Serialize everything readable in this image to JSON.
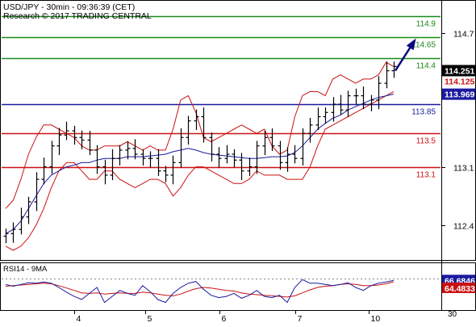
{
  "header": {
    "line1": "USD/JPY - 30min - 09:36:39 (CET)",
    "line2": "Research © 2017 TRADING CENTRAL"
  },
  "rsi_panel": {
    "label": "RSI14 - 9MA",
    "scale_label": "30",
    "rsi_value": "66.6846",
    "ma_value": "64.4833"
  },
  "colors": {
    "level_up": "#1a8a1a",
    "level_pivot": "#1a1aa0",
    "level_down": "#cc1111",
    "candles": "#000000",
    "bollinger": "#cc1111",
    "moving_average": "#1a1aa0",
    "target_arrow": "#0a0a80",
    "price_tag_current": "#000000",
    "price_tag_pivot": "#1a1aa0",
    "price_tag_red": "#cc1111",
    "rsi_tag": "#1a1aa0",
    "rsi_ma_tag": "#cc1111"
  },
  "chart_data": {
    "type": "line",
    "title": "USD/JPY - 30min",
    "xlabel": "",
    "ylabel": "",
    "ylim": [
      112.2,
      114.95
    ],
    "x_ticks": [
      "4",
      "5",
      "6",
      "7",
      "10"
    ],
    "y_ticks": [
      {
        "value": 114.7,
        "label": "114.7"
      },
      {
        "value": 113.1,
        "label": "113.1"
      },
      {
        "value": 112.4,
        "label": "112.4"
      }
    ],
    "current_price": {
      "value": 114.251,
      "label": "114.251"
    },
    "price_tags": [
      {
        "value": 114.125,
        "label": "114.125",
        "role": "red"
      },
      {
        "value": 113.969,
        "label": "113.969",
        "role": "pivot"
      }
    ],
    "levels": [
      {
        "value": 114.9,
        "label": "114.9",
        "role": "up"
      },
      {
        "value": 114.65,
        "label": "114.65",
        "role": "up"
      },
      {
        "value": 114.4,
        "label": "114.4",
        "role": "up"
      },
      {
        "value": 113.85,
        "label": "113.85",
        "role": "pivot"
      },
      {
        "value": 113.5,
        "label": "113.5",
        "role": "down"
      },
      {
        "value": 113.1,
        "label": "113.1",
        "role": "down"
      }
    ],
    "series": [
      {
        "values": [
          112.3,
          112.35,
          112.5,
          112.68,
          112.95,
          113.1,
          113.35,
          113.48,
          113.53,
          113.45,
          113.42,
          113.3,
          113.1,
          113.0,
          113.2,
          113.3,
          113.32,
          113.25,
          113.2,
          113.2,
          113.05,
          113.0,
          113.15,
          113.45,
          113.65,
          113.7,
          113.45,
          113.25,
          113.2,
          113.25,
          113.18,
          113.05,
          113.1,
          113.35,
          113.45,
          113.35,
          113.15,
          113.25,
          113.2,
          113.5,
          113.6,
          113.7,
          113.75,
          113.85,
          113.78,
          113.95,
          113.95,
          113.85,
          113.9,
          114.1,
          114.25,
          114.3
        ]
      }
    ],
    "bollinger_bands": {
      "upper": [
        112.6,
        112.7,
        112.95,
        113.25,
        113.45,
        113.6,
        113.6,
        113.55,
        113.5,
        113.45,
        113.35,
        113.3,
        113.3,
        113.35,
        113.35,
        113.35,
        113.4,
        113.35,
        113.3,
        113.35,
        113.3,
        113.3,
        113.55,
        113.9,
        113.95,
        113.75,
        113.45,
        113.4,
        113.45,
        113.5,
        113.55,
        113.6,
        113.55,
        113.5,
        113.55,
        113.35,
        113.25,
        113.3,
        113.7,
        113.95,
        114.0,
        114.0,
        113.95,
        114.15,
        114.2,
        114.15,
        114.1,
        114.15,
        114.15,
        114.2,
        114.35,
        114.3
      ],
      "lower": [
        112.15,
        112.1,
        112.15,
        112.25,
        112.4,
        112.6,
        112.85,
        113.05,
        113.15,
        113.15,
        113.05,
        112.95,
        112.95,
        113.05,
        113.05,
        112.95,
        112.9,
        112.85,
        112.9,
        112.95,
        112.95,
        112.9,
        112.75,
        112.85,
        113.0,
        113.1,
        113.1,
        113.05,
        113.0,
        112.95,
        112.9,
        112.9,
        112.95,
        113.05,
        113.0,
        113.0,
        113.0,
        112.95,
        112.95,
        112.95,
        113.1,
        113.35,
        113.55,
        113.6,
        113.65,
        113.7,
        113.75,
        113.8,
        113.85,
        113.9,
        113.95,
        114.0
      ]
    },
    "moving_average": [
      112.3,
      112.35,
      112.45,
      112.6,
      112.75,
      112.9,
      113.0,
      113.05,
      113.1,
      113.12,
      113.15,
      113.15,
      113.18,
      113.2,
      113.2,
      113.2,
      113.22,
      113.22,
      113.22,
      113.23,
      113.24,
      113.25,
      113.28,
      113.3,
      113.32,
      113.3,
      113.27,
      113.25,
      113.24,
      113.23,
      113.22,
      113.21,
      113.2,
      113.2,
      113.21,
      113.22,
      113.22,
      113.23,
      113.27,
      113.35,
      113.45,
      113.55,
      113.62,
      113.68,
      113.72,
      113.78,
      113.82,
      113.86,
      113.9,
      113.93,
      113.95,
      113.97
    ],
    "target_arrow": {
      "from": 114.25,
      "to": 114.65
    },
    "rsi": {
      "ylim": [
        20,
        90
      ],
      "rsi14": [
        60,
        57,
        60,
        63,
        62,
        64,
        62,
        55,
        47,
        40,
        35,
        45,
        55,
        30,
        40,
        50,
        45,
        42,
        58,
        48,
        35,
        30,
        45,
        55,
        62,
        65,
        52,
        42,
        38,
        40,
        45,
        37,
        42,
        50,
        40,
        38,
        42,
        30,
        55,
        68,
        62,
        62,
        60,
        58,
        60,
        63,
        55,
        50,
        58,
        62,
        64,
        66.68
      ],
      "ma9": [
        57,
        58,
        59,
        60,
        61,
        62,
        61,
        58,
        54,
        50,
        46,
        45,
        46,
        44,
        45,
        46,
        45,
        45,
        47,
        46,
        44,
        42,
        41,
        44,
        49,
        53,
        55,
        54,
        52,
        50,
        49,
        46,
        44,
        43,
        42,
        41,
        40,
        39,
        41,
        46,
        51,
        55,
        57,
        58,
        60,
        61,
        60,
        58,
        58,
        59,
        61,
        64.48
      ],
      "level_line": 70
    }
  }
}
